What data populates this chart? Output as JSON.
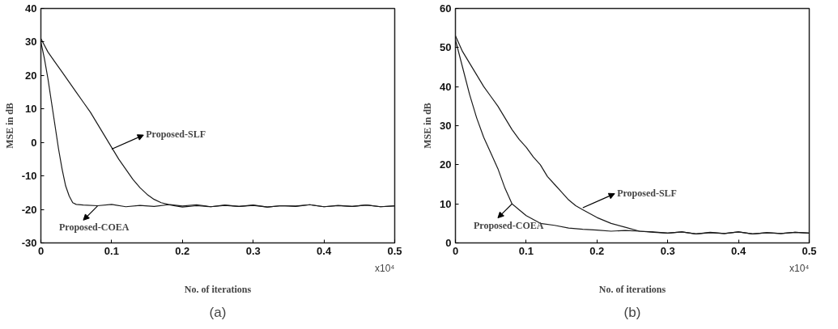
{
  "chart_data": [
    {
      "type": "line",
      "xlabel": "No. of iterations",
      "ylabel": "MSE in dB",
      "xlim": [
        0,
        0.5
      ],
      "ylim": [
        -30,
        40
      ],
      "xticks": [
        0,
        0.1,
        0.2,
        0.3,
        0.4,
        0.5
      ],
      "yticks": [
        -30,
        -20,
        -10,
        0,
        10,
        20,
        30,
        40
      ],
      "grid": false,
      "marker": "none",
      "line_style": "solid",
      "series": [
        {
          "color": "#1a1a1a",
          "x": [
            0,
            0.01,
            0.02,
            0.03,
            0.04,
            0.05,
            0.06,
            0.07,
            0.08,
            0.09,
            0.1,
            0.11,
            0.12,
            0.13,
            0.14,
            0.15,
            0.16,
            0.17,
            0.18,
            0.2,
            0.22,
            0.24,
            0.26,
            0.28,
            0.3,
            0.32,
            0.34,
            0.36,
            0.38,
            0.4,
            0.42,
            0.44,
            0.46,
            0.48,
            0.5
          ],
          "values": [
            31,
            27,
            24,
            21,
            18,
            15,
            12,
            9,
            5.5,
            2,
            -1.5,
            -5,
            -8,
            -11,
            -13.5,
            -15.5,
            -17,
            -18,
            -18.5,
            -19,
            -18.6,
            -19.2,
            -18.8,
            -19.1,
            -18.7,
            -19.3,
            -18.9,
            -19,
            -18.6,
            -19.2,
            -18.8,
            -19.1,
            -18.7,
            -19.2,
            -19
          ]
        },
        {
          "color": "#1a1a1a",
          "x": [
            0,
            0.005,
            0.01,
            0.015,
            0.02,
            0.025,
            0.03,
            0.035,
            0.04,
            0.045,
            0.05,
            0.06,
            0.08,
            0.1,
            0.12,
            0.14,
            0.16,
            0.18,
            0.2,
            0.22,
            0.24,
            0.26,
            0.28,
            0.3,
            0.32,
            0.34,
            0.36,
            0.38,
            0.4,
            0.42,
            0.44,
            0.46,
            0.48,
            0.5
          ],
          "values": [
            30,
            25,
            19,
            12,
            5,
            -2,
            -8,
            -13,
            -16,
            -18,
            -18.5,
            -18.7,
            -18.9,
            -18.5,
            -19.2,
            -18.8,
            -19.1,
            -18.6,
            -19.3,
            -18.9,
            -19.2,
            -18.7,
            -19.1,
            -18.8,
            -19.3,
            -18.9,
            -19.1,
            -18.6,
            -19.2,
            -18.9,
            -19.1,
            -18.7,
            -19.2,
            -18.9
          ]
        }
      ],
      "annotations": [
        {
          "text": "Proposed-SLF",
          "x": 0.1,
          "y": -2
        },
        {
          "text": "Proposed-COEA",
          "x": 0.08,
          "y": -19
        },
        "x10⁴",
        "(a)"
      ]
    },
    {
      "type": "line",
      "xlabel": "No. of iterations",
      "ylabel": "MSE in dB",
      "xlim": [
        0,
        0.5
      ],
      "ylim": [
        0,
        60
      ],
      "xticks": [
        0,
        0.1,
        0.2,
        0.3,
        0.4,
        0.5
      ],
      "yticks": [
        0,
        10,
        20,
        30,
        40,
        50,
        60
      ],
      "grid": false,
      "marker": "none",
      "line_style": "solid",
      "series": [
        {
          "color": "#1a1a1a",
          "x": [
            0,
            0.01,
            0.02,
            0.03,
            0.04,
            0.05,
            0.06,
            0.07,
            0.08,
            0.09,
            0.1,
            0.11,
            0.12,
            0.13,
            0.14,
            0.15,
            0.16,
            0.17,
            0.18,
            0.19,
            0.2,
            0.22,
            0.24,
            0.26,
            0.28,
            0.3,
            0.32,
            0.34,
            0.36,
            0.38,
            0.4,
            0.42,
            0.44,
            0.46,
            0.48,
            0.5
          ],
          "values": [
            53,
            49,
            46,
            43,
            40,
            37.5,
            35,
            32,
            29,
            26.5,
            24.5,
            22,
            20,
            17,
            15,
            13,
            11,
            9.5,
            8.5,
            7.5,
            6.5,
            5,
            4,
            3,
            2.8,
            2.5,
            2.8,
            2.3,
            2.7,
            2.4,
            2.8,
            2.3,
            2.6,
            2.4,
            2.7,
            2.5
          ]
        },
        {
          "color": "#1a1a1a",
          "x": [
            0,
            0.01,
            0.02,
            0.03,
            0.04,
            0.05,
            0.06,
            0.07,
            0.08,
            0.09,
            0.1,
            0.11,
            0.12,
            0.14,
            0.16,
            0.18,
            0.2,
            0.22,
            0.24,
            0.26,
            0.28,
            0.3,
            0.32,
            0.34,
            0.36,
            0.38,
            0.4,
            0.42,
            0.44,
            0.46,
            0.48,
            0.5
          ],
          "values": [
            52,
            45,
            38,
            32,
            27,
            23,
            19,
            14,
            10,
            8.5,
            7,
            6,
            5,
            4.5,
            3.8,
            3.5,
            3.3,
            3,
            3.2,
            3,
            2.7,
            2.5,
            2.8,
            2.3,
            2.6,
            2.4,
            2.8,
            2.3,
            2.6,
            2.4,
            2.7,
            2.5
          ]
        }
      ],
      "annotations": [
        {
          "text": "Proposed-SLF",
          "x": 0.18,
          "y": 9
        },
        {
          "text": "Proposed-COEA",
          "x": 0.08,
          "y": 10
        },
        "x10⁴",
        "(b)"
      ]
    }
  ]
}
